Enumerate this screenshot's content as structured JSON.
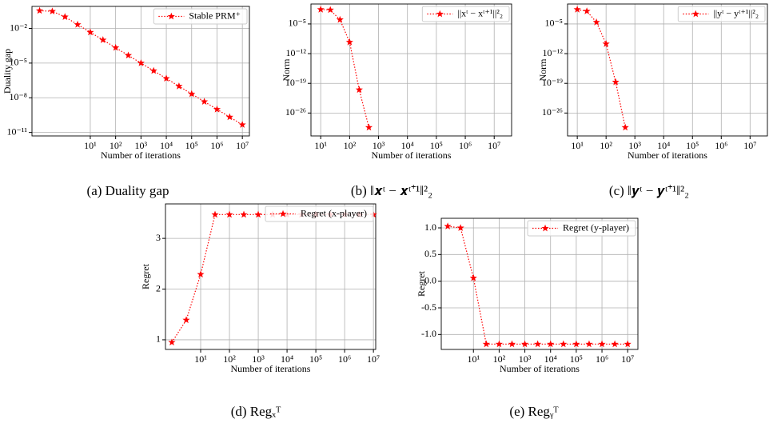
{
  "chart_data": [
    {
      "type": "line",
      "caption": "(a) Duality gap",
      "xlabel": "Number of iterations",
      "ylabel": "Duality gap",
      "x": [
        0.1,
        0.316,
        1,
        3.16,
        10,
        31.6,
        100,
        316,
        1000,
        3162,
        10000,
        31623,
        100000,
        316228,
        1000000,
        3162278,
        10000000
      ],
      "series": [
        {
          "name": "Stable PRM⁺",
          "color": "#ff0000",
          "values": [
            0.34,
            0.3,
            0.1,
            0.0215,
            0.00464,
            0.001,
            0.000215,
            4.64e-05,
            1e-05,
            2.15e-06,
            4.64e-07,
            1e-07,
            2.15e-08,
            4.64e-09,
            1e-09,
            2.15e-10,
            4.64e-11
          ]
        }
      ],
      "xscale": "log",
      "yscale": "log",
      "xlim": [
        0.05,
        19000000
      ],
      "ylim": [
        5e-12,
        0.8
      ],
      "xticks": [
        {
          "value": 10,
          "label": "10¹"
        },
        {
          "value": 100,
          "label": "10²"
        },
        {
          "value": 1000,
          "label": "10³"
        },
        {
          "value": 10000,
          "label": "10⁴"
        },
        {
          "value": 100000,
          "label": "10⁵"
        },
        {
          "value": 1000000,
          "label": "10⁶"
        },
        {
          "value": 10000000,
          "label": "10⁷"
        }
      ],
      "yticks": [
        {
          "value": 0.01,
          "label": "10⁻²"
        },
        {
          "value": 1e-05,
          "label": "10⁻⁵"
        },
        {
          "value": 1e-08,
          "label": "10⁻⁸"
        },
        {
          "value": 1e-11,
          "label": "10⁻¹¹"
        }
      ],
      "grid": true,
      "legend": "upper right"
    },
    {
      "type": "line",
      "caption": "(b) ‖𝒙ᵗ − 𝒙ᵗ⁺¹‖²₂",
      "xlabel": "Number of iterations",
      "ylabel": "Norm",
      "x": [
        10,
        21.5,
        46.4,
        100,
        215,
        464
      ],
      "series": [
        {
          "name": "||xᵗ − xᵗ⁺¹||²₂",
          "color": "#ff0000",
          "values": [
            0.025,
            0.02,
            0.0001,
            5e-10,
            3e-21,
            4e-30
          ]
        }
      ],
      "xscale": "log",
      "yscale": "log",
      "xlim": [
        4.6,
        40000000
      ],
      "ylim": [
        4e-32,
        0.5
      ],
      "xticks": [
        {
          "value": 10,
          "label": "10¹"
        },
        {
          "value": 100,
          "label": "10²"
        },
        {
          "value": 1000,
          "label": "10³"
        },
        {
          "value": 10000,
          "label": "10⁴"
        },
        {
          "value": 100000,
          "label": "10⁵"
        },
        {
          "value": 1000000,
          "label": "10⁶"
        },
        {
          "value": 10000000,
          "label": "10⁷"
        }
      ],
      "yticks": [
        {
          "value": 1e-05,
          "label": "10⁻⁵"
        },
        {
          "value": 1e-12,
          "label": "10⁻¹²"
        },
        {
          "value": 1e-19,
          "label": "10⁻¹⁹"
        },
        {
          "value": 1e-26,
          "label": "10⁻²⁶"
        }
      ],
      "grid": true,
      "legend": "upper right"
    },
    {
      "type": "line",
      "caption": "(c) ‖𝒚ᵗ − 𝒚ᵗ⁺¹‖²₂",
      "xlabel": "Number of iterations",
      "ylabel": "Norm",
      "x": [
        10,
        21.5,
        46.4,
        100,
        215,
        464
      ],
      "series": [
        {
          "name": "||yᵗ − yᵗ⁺¹||²₂",
          "color": "#ff0000",
          "values": [
            0.025,
            0.01,
            2.5e-05,
            2e-10,
            2e-19,
            4e-30
          ]
        }
      ],
      "xscale": "log",
      "yscale": "log",
      "xlim": [
        4.6,
        40000000
      ],
      "ylim": [
        4e-32,
        0.5
      ],
      "xticks": [
        {
          "value": 10,
          "label": "10¹"
        },
        {
          "value": 100,
          "label": "10²"
        },
        {
          "value": 1000,
          "label": "10³"
        },
        {
          "value": 10000,
          "label": "10⁴"
        },
        {
          "value": 100000,
          "label": "10⁵"
        },
        {
          "value": 1000000,
          "label": "10⁶"
        },
        {
          "value": 10000000,
          "label": "10⁷"
        }
      ],
      "yticks": [
        {
          "value": 1e-05,
          "label": "10⁻⁵"
        },
        {
          "value": 1e-12,
          "label": "10⁻¹²"
        },
        {
          "value": 1e-19,
          "label": "10⁻¹⁹"
        },
        {
          "value": 1e-26,
          "label": "10⁻²⁶"
        }
      ],
      "grid": true,
      "legend": "upper right"
    },
    {
      "type": "line",
      "caption": "(d) Regₓᵀ",
      "xlabel": "Number of iterations",
      "ylabel": "Regret",
      "x": [
        1,
        3.16,
        10,
        31.6,
        100,
        316,
        1000,
        3162,
        10000,
        31623,
        100000,
        316228,
        1000000,
        3162278,
        10000000
      ],
      "series": [
        {
          "name": "Regret (x-player)",
          "color": "#ff0000",
          "values": [
            0.95,
            1.39,
            2.29,
            3.47,
            3.47,
            3.47,
            3.47,
            3.47,
            3.47,
            3.47,
            3.47,
            3.47,
            3.47,
            3.47,
            3.47
          ]
        }
      ],
      "xscale": "log",
      "yscale": "linear",
      "xlim": [
        0.6,
        12000000
      ],
      "ylim": [
        0.81,
        3.68
      ],
      "xticks": [
        {
          "value": 10,
          "label": "10¹"
        },
        {
          "value": 100,
          "label": "10²"
        },
        {
          "value": 1000,
          "label": "10³"
        },
        {
          "value": 10000,
          "label": "10⁴"
        },
        {
          "value": 100000,
          "label": "10⁵"
        },
        {
          "value": 1000000,
          "label": "10⁶"
        },
        {
          "value": 10000000,
          "label": "10⁷"
        }
      ],
      "yticks": [
        1,
        2,
        3
      ],
      "grid": true,
      "legend": "upper right"
    },
    {
      "type": "line",
      "caption": "(e) Regᵧᵀ",
      "xlabel": "Number of iterations",
      "ylabel": "Regret",
      "x": [
        1,
        3.16,
        10,
        31.6,
        100,
        316,
        1000,
        3162,
        10000,
        31623,
        100000,
        316228,
        1000000,
        3162278,
        10000000
      ],
      "series": [
        {
          "name": "Regret (y-player)",
          "color": "#ff0000",
          "values": [
            1.03,
            1.0,
            0.06,
            -1.18,
            -1.18,
            -1.18,
            -1.18,
            -1.18,
            -1.18,
            -1.18,
            -1.18,
            -1.18,
            -1.18,
            -1.18,
            -1.18
          ]
        }
      ],
      "xscale": "log",
      "yscale": "linear",
      "xlim": [
        0.56,
        25000000
      ],
      "ylim": [
        -1.28,
        1.18
      ],
      "xticks": [
        {
          "value": 10,
          "label": "10¹"
        },
        {
          "value": 100,
          "label": "10²"
        },
        {
          "value": 1000,
          "label": "10³"
        },
        {
          "value": 10000,
          "label": "10⁴"
        },
        {
          "value": 100000,
          "label": "10⁵"
        },
        {
          "value": 1000000,
          "label": "10⁶"
        },
        {
          "value": 10000000,
          "label": "10⁷"
        }
      ],
      "yticks": [
        {
          "value": 1,
          "label": "1.0"
        },
        0.5,
        {
          "value": 0,
          "label": "0.0"
        },
        -0.5,
        {
          "value": -1,
          "label": "-1.0"
        }
      ],
      "grid": true,
      "legend": "upper right"
    }
  ]
}
